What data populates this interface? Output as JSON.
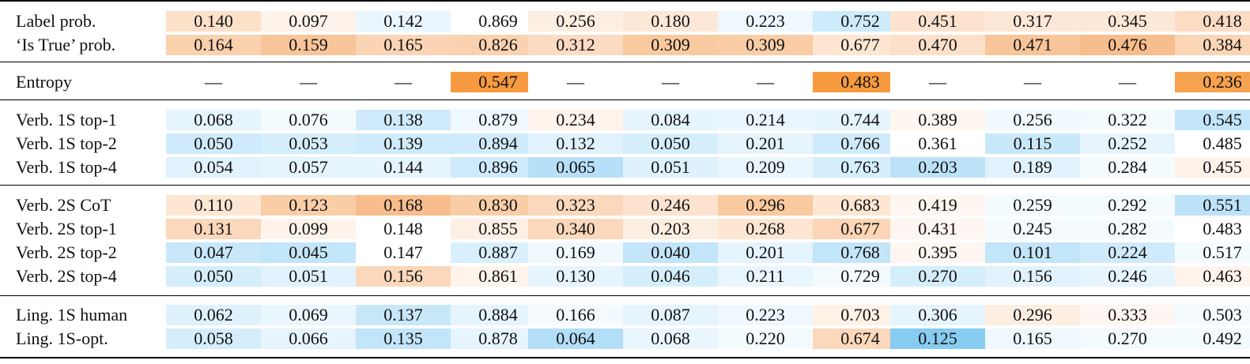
{
  "groups": [
    {
      "rows": [
        {
          "label": "Label prob.",
          "cells": [
            {
              "v": "0.140",
              "c": "#fce0c8"
            },
            {
              "v": "0.097",
              "c": "#fef3ea"
            },
            {
              "v": "0.142",
              "c": "#eaf6fd"
            },
            {
              "v": "0.869",
              "c": "#ffffff"
            },
            {
              "v": "0.256",
              "c": "#fdeee2"
            },
            {
              "v": "0.180",
              "c": "#fde8d7"
            },
            {
              "v": "0.223",
              "c": "#eef8fe"
            },
            {
              "v": "0.752",
              "c": "#cdebfb"
            },
            {
              "v": "0.451",
              "c": "#fde3cf"
            },
            {
              "v": "0.317",
              "c": "#fde8d7"
            },
            {
              "v": "0.345",
              "c": "#fde8d7"
            },
            {
              "v": "0.418",
              "c": "#fddcc4"
            }
          ]
        },
        {
          "label": "‘Is True’ prob.",
          "cells": [
            {
              "v": "0.164",
              "c": "#fad1ad"
            },
            {
              "v": "0.159",
              "c": "#f8c59a"
            },
            {
              "v": "0.165",
              "c": "#fad4b4"
            },
            {
              "v": "0.826",
              "c": "#fad2b0"
            },
            {
              "v": "0.312",
              "c": "#fbdcc3"
            },
            {
              "v": "0.309",
              "c": "#f9ca9f"
            },
            {
              "v": "0.309",
              "c": "#f9cda6"
            },
            {
              "v": "0.677",
              "c": "#fde6d2"
            },
            {
              "v": "0.470",
              "c": "#fde0c9"
            },
            {
              "v": "0.471",
              "c": "#f8c59a"
            },
            {
              "v": "0.476",
              "c": "#f7bd8c"
            },
            {
              "v": "0.384",
              "c": "#fad5b6"
            }
          ]
        }
      ]
    },
    {
      "rows": [
        {
          "label": "Entropy",
          "cells": [
            {
              "v": "—",
              "c": "#ffffff"
            },
            {
              "v": "—",
              "c": "#ffffff"
            },
            {
              "v": "—",
              "c": "#ffffff"
            },
            {
              "v": "0.547",
              "c": "#f79a3f"
            },
            {
              "v": "—",
              "c": "#ffffff"
            },
            {
              "v": "—",
              "c": "#ffffff"
            },
            {
              "v": "—",
              "c": "#ffffff"
            },
            {
              "v": "0.483",
              "c": "#f79a3f"
            },
            {
              "v": "—",
              "c": "#ffffff"
            },
            {
              "v": "—",
              "c": "#ffffff"
            },
            {
              "v": "—",
              "c": "#ffffff"
            },
            {
              "v": "0.236",
              "c": "#f7a24e"
            }
          ]
        }
      ]
    },
    {
      "rows": [
        {
          "label": "Verb. 1S top-1",
          "cells": [
            {
              "v": "0.068",
              "c": "#e6f4fd"
            },
            {
              "v": "0.076",
              "c": "#f4fbff"
            },
            {
              "v": "0.138",
              "c": "#cfebfb"
            },
            {
              "v": "0.879",
              "c": "#eef8fe"
            },
            {
              "v": "0.234",
              "c": "#fef4ec"
            },
            {
              "v": "0.084",
              "c": "#e6f4fd"
            },
            {
              "v": "0.214",
              "c": "#eaf6fd"
            },
            {
              "v": "0.744",
              "c": "#e6f4fd"
            },
            {
              "v": "0.389",
              "c": "#fef6f0"
            },
            {
              "v": "0.256",
              "c": "#f0f9fe"
            },
            {
              "v": "0.322",
              "c": "#f4fbff"
            },
            {
              "v": "0.545",
              "c": "#c2e5f9"
            }
          ]
        },
        {
          "label": "Verb. 1S top-2",
          "cells": [
            {
              "v": "0.050",
              "c": "#cfebfb"
            },
            {
              "v": "0.053",
              "c": "#d5eefc"
            },
            {
              "v": "0.139",
              "c": "#cfebfb"
            },
            {
              "v": "0.894",
              "c": "#cfebfb"
            },
            {
              "v": "0.132",
              "c": "#e1f2fc"
            },
            {
              "v": "0.050",
              "c": "#d5eefc"
            },
            {
              "v": "0.201",
              "c": "#e6f4fd"
            },
            {
              "v": "0.766",
              "c": "#cfebfb"
            },
            {
              "v": "0.361",
              "c": "#ffffff"
            },
            {
              "v": "0.115",
              "c": "#c8e8fa"
            },
            {
              "v": "0.252",
              "c": "#e6f4fd"
            },
            {
              "v": "0.485",
              "c": "#ffffff"
            }
          ]
        },
        {
          "label": "Verb. 1S top-4",
          "cells": [
            {
              "v": "0.054",
              "c": "#e1f2fc"
            },
            {
              "v": "0.057",
              "c": "#e6f4fd"
            },
            {
              "v": "0.144",
              "c": "#e6f4fd"
            },
            {
              "v": "0.896",
              "c": "#cfebfb"
            },
            {
              "v": "0.065",
              "c": "#b7e0f8"
            },
            {
              "v": "0.051",
              "c": "#dff1fc"
            },
            {
              "v": "0.209",
              "c": "#eaf6fd"
            },
            {
              "v": "0.763",
              "c": "#d5eefc"
            },
            {
              "v": "0.203",
              "c": "#bce2f8"
            },
            {
              "v": "0.189",
              "c": "#e1f2fc"
            },
            {
              "v": "0.284",
              "c": "#f4fbff"
            },
            {
              "v": "0.455",
              "c": "#fdf1e8"
            }
          ]
        }
      ]
    },
    {
      "rows": [
        {
          "label": "Verb. 2S CoT",
          "cells": [
            {
              "v": "0.110",
              "c": "#fde6d2"
            },
            {
              "v": "0.123",
              "c": "#f9cea7"
            },
            {
              "v": "0.168",
              "c": "#f7bd8c"
            },
            {
              "v": "0.830",
              "c": "#f9cda6"
            },
            {
              "v": "0.323",
              "c": "#fbd8bb"
            },
            {
              "v": "0.246",
              "c": "#fde3cf"
            },
            {
              "v": "0.296",
              "c": "#f9ca9f"
            },
            {
              "v": "0.683",
              "c": "#fde6d2"
            },
            {
              "v": "0.419",
              "c": "#fef6f0"
            },
            {
              "v": "0.259",
              "c": "#f4fbff"
            },
            {
              "v": "0.292",
              "c": "#f4fbff"
            },
            {
              "v": "0.551",
              "c": "#bce2f8"
            }
          ]
        },
        {
          "label": "Verb. 2S top-1",
          "cells": [
            {
              "v": "0.131",
              "c": "#fbd8bb"
            },
            {
              "v": "0.099",
              "c": "#fef3ea"
            },
            {
              "v": "0.148",
              "c": "#ffffff"
            },
            {
              "v": "0.855",
              "c": "#fdefe4"
            },
            {
              "v": "0.340",
              "c": "#fbd8bb"
            },
            {
              "v": "0.203",
              "c": "#fdeee2"
            },
            {
              "v": "0.268",
              "c": "#fde6d2"
            },
            {
              "v": "0.677",
              "c": "#fbd5b5"
            },
            {
              "v": "0.431",
              "c": "#fef6f0"
            },
            {
              "v": "0.245",
              "c": "#f4fbff"
            },
            {
              "v": "0.282",
              "c": "#f4fbff"
            },
            {
              "v": "0.483",
              "c": "#ffffff"
            }
          ]
        },
        {
          "label": "Verb. 2S top-2",
          "cells": [
            {
              "v": "0.047",
              "c": "#c8e8fa"
            },
            {
              "v": "0.045",
              "c": "#c2e5f9"
            },
            {
              "v": "0.147",
              "c": "#ffffff"
            },
            {
              "v": "0.887",
              "c": "#d9effc"
            },
            {
              "v": "0.169",
              "c": "#f0f9fe"
            },
            {
              "v": "0.040",
              "c": "#c2e5f9"
            },
            {
              "v": "0.201",
              "c": "#e6f4fd"
            },
            {
              "v": "0.768",
              "c": "#c2e5f9"
            },
            {
              "v": "0.395",
              "c": "#fef6f0"
            },
            {
              "v": "0.101",
              "c": "#c2e5f9"
            },
            {
              "v": "0.224",
              "c": "#cfebfb"
            },
            {
              "v": "0.517",
              "c": "#f4fbff"
            }
          ]
        },
        {
          "label": "Verb. 2S top-4",
          "cells": [
            {
              "v": "0.050",
              "c": "#d5eefc"
            },
            {
              "v": "0.051",
              "c": "#e1f2fc"
            },
            {
              "v": "0.156",
              "c": "#fbd8bb"
            },
            {
              "v": "0.861",
              "c": "#fef4ec"
            },
            {
              "v": "0.130",
              "c": "#e6f4fd"
            },
            {
              "v": "0.046",
              "c": "#d5eefc"
            },
            {
              "v": "0.211",
              "c": "#eaf6fd"
            },
            {
              "v": "0.729",
              "c": "#f4fbff"
            },
            {
              "v": "0.270",
              "c": "#d5eefc"
            },
            {
              "v": "0.156",
              "c": "#e1f2fc"
            },
            {
              "v": "0.246",
              "c": "#e6f4fd"
            },
            {
              "v": "0.463",
              "c": "#fef4ec"
            }
          ]
        }
      ]
    },
    {
      "rows": [
        {
          "label": "Ling. 1S human",
          "cells": [
            {
              "v": "0.062",
              "c": "#dff1fc"
            },
            {
              "v": "0.069",
              "c": "#eaf6fd"
            },
            {
              "v": "0.137",
              "c": "#c8e8fa"
            },
            {
              "v": "0.884",
              "c": "#e6f4fd"
            },
            {
              "v": "0.166",
              "c": "#f4fbff"
            },
            {
              "v": "0.087",
              "c": "#e6f4fd"
            },
            {
              "v": "0.223",
              "c": "#eef8fe"
            },
            {
              "v": "0.703",
              "c": "#fef1e6"
            },
            {
              "v": "0.306",
              "c": "#e6f4fd"
            },
            {
              "v": "0.296",
              "c": "#fdeee2"
            },
            {
              "v": "0.333",
              "c": "#fef6f0"
            },
            {
              "v": "0.503",
              "c": "#f4fbff"
            }
          ]
        },
        {
          "label": "Ling. 1S-opt.",
          "cells": [
            {
              "v": "0.058",
              "c": "#d5eefc"
            },
            {
              "v": "0.066",
              "c": "#e6f4fd"
            },
            {
              "v": "0.135",
              "c": "#c2e5f9"
            },
            {
              "v": "0.878",
              "c": "#e6f4fd"
            },
            {
              "v": "0.064",
              "c": "#b3def7"
            },
            {
              "v": "0.068",
              "c": "#eaf6fd"
            },
            {
              "v": "0.220",
              "c": "#f4fbff"
            },
            {
              "v": "0.674",
              "c": "#fbd8bb"
            },
            {
              "v": "0.125",
              "c": "#87cdf2"
            },
            {
              "v": "0.165",
              "c": "#eef8fe"
            },
            {
              "v": "0.270",
              "c": "#f4fbff"
            },
            {
              "v": "0.492",
              "c": "#f4fbff"
            }
          ]
        }
      ]
    }
  ]
}
